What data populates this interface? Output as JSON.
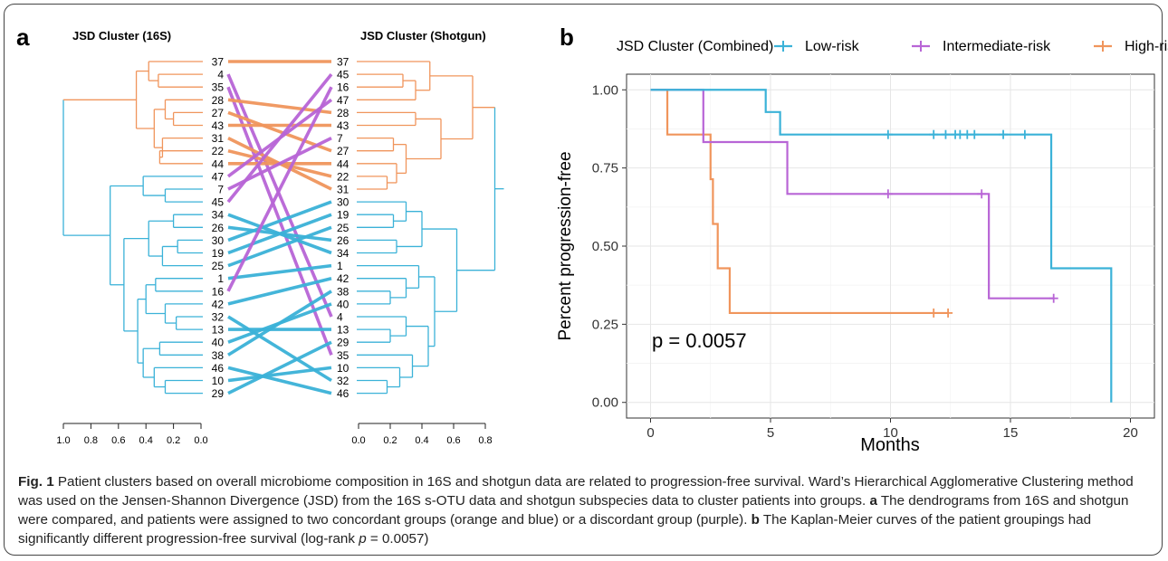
{
  "panel_a": {
    "label": "a",
    "left_title": "JSD Cluster (16S)",
    "right_title": "JSD Cluster (Shotgun)",
    "left_order": [
      "37",
      "4",
      "35",
      "28",
      "27",
      "43",
      "31",
      "22",
      "44",
      "47",
      "7",
      "45",
      "34",
      "26",
      "30",
      "19",
      "25",
      "1",
      "16",
      "42",
      "32",
      "13",
      "40",
      "38",
      "46",
      "10",
      "29"
    ],
    "right_order": [
      "37",
      "45",
      "16",
      "47",
      "28",
      "43",
      "7",
      "27",
      "44",
      "22",
      "31",
      "30",
      "19",
      "25",
      "26",
      "34",
      "1",
      "42",
      "38",
      "40",
      "4",
      "13",
      "29",
      "35",
      "10",
      "32",
      "46"
    ],
    "groups": {
      "orange": [
        "37",
        "28",
        "27",
        "43",
        "31",
        "22",
        "44"
      ],
      "purple": [
        "4",
        "35",
        "47",
        "7",
        "45",
        "16"
      ],
      "blue": [
        "34",
        "26",
        "30",
        "19",
        "25",
        "1",
        "42",
        "32",
        "13",
        "40",
        "38",
        "46",
        "10",
        "29"
      ]
    },
    "left_axis_ticks": [
      "1.0",
      "0.8",
      "0.6",
      "0.4",
      "0.2",
      "0.0"
    ],
    "right_axis_ticks": [
      "0.0",
      "0.2",
      "0.4",
      "0.6",
      "0.8"
    ]
  },
  "chart_data": {
    "type": "line",
    "panel_label": "b",
    "legend_title": "JSD Cluster (Combined)",
    "legend_position": "top",
    "xlabel": "Months",
    "ylabel": "Percent progression-free",
    "xlim": [
      -1,
      21
    ],
    "ylim": [
      -0.05,
      1.05
    ],
    "x_ticks": [
      0,
      5,
      10,
      15,
      20
    ],
    "x_tick_labels": [
      "0",
      "5",
      "10",
      "15",
      "20"
    ],
    "y_ticks": [
      0,
      0.25,
      0.5,
      0.75,
      1.0
    ],
    "y_tick_labels": [
      "0.00",
      "0.25",
      "0.50",
      "0.75",
      "1.00"
    ],
    "grid": true,
    "annotation": "p = 0.0057",
    "series": [
      {
        "name": "Low-risk",
        "color": "#3bb2d8",
        "steps": [
          [
            0,
            1.0
          ],
          [
            4.8,
            0.929
          ],
          [
            5.4,
            0.857
          ],
          [
            16.7,
            0.429
          ],
          [
            19.2,
            0.0
          ]
        ],
        "end_x": 19.2,
        "censor_x": [
          9.9,
          11.8,
          12.3,
          12.7,
          12.9,
          13.2,
          13.5,
          14.7,
          15.6
        ],
        "censor_y": [
          0.857,
          0.857,
          0.857,
          0.857,
          0.857,
          0.857,
          0.857,
          0.857,
          0.857
        ]
      },
      {
        "name": "Intermediate-risk",
        "color": "#b865d6",
        "steps": [
          [
            0,
            1.0
          ],
          [
            2.2,
            0.833
          ],
          [
            5.7,
            0.667
          ],
          [
            14.1,
            0.333
          ]
        ],
        "end_x": 16.8,
        "censor_x": [
          9.9,
          13.8,
          16.8
        ],
        "censor_y": [
          0.667,
          0.667,
          0.333
        ]
      },
      {
        "name": "High-risk",
        "color": "#f0955c",
        "steps": [
          [
            0,
            1.0
          ],
          [
            0.7,
            0.857
          ],
          [
            2.5,
            0.714
          ],
          [
            2.6,
            0.571
          ],
          [
            2.8,
            0.429
          ],
          [
            3.3,
            0.286
          ]
        ],
        "end_x": 12.4,
        "censor_x": [
          11.8,
          12.4
        ],
        "censor_y": [
          0.286,
          0.286
        ]
      }
    ]
  },
  "caption": {
    "fig_label": "Fig. 1",
    "sentence1": " Patient clusters based on overall microbiome composition in 16S and shotgun data are related to progression-free survival. Ward’s Hierarchical Agglomerative Clustering method was used on the Jensen-Shannon Divergence (JSD) from the 16S s-OTU data and shotgun subspecies data to cluster patients into groups. ",
    "label_a": "a",
    "part_a": " The dendrograms from 16S and shotgun were compared, and patients were assigned to two concordant groups (orange and blue) or a discordant group (purple). ",
    "label_b": "b",
    "part_b_1": " The Kaplan-Meier curves of the patient groupings had significantly different progression-free survival (log-rank ",
    "p_symbol": "p",
    "part_b_2": " = 0.0057)"
  },
  "colors": {
    "orange": "#f0955c",
    "blue": "#3bb2d8",
    "purple": "#b865d6",
    "frame": "#444444",
    "panel_bg": "#ffffff",
    "grid": "#ebebeb"
  }
}
